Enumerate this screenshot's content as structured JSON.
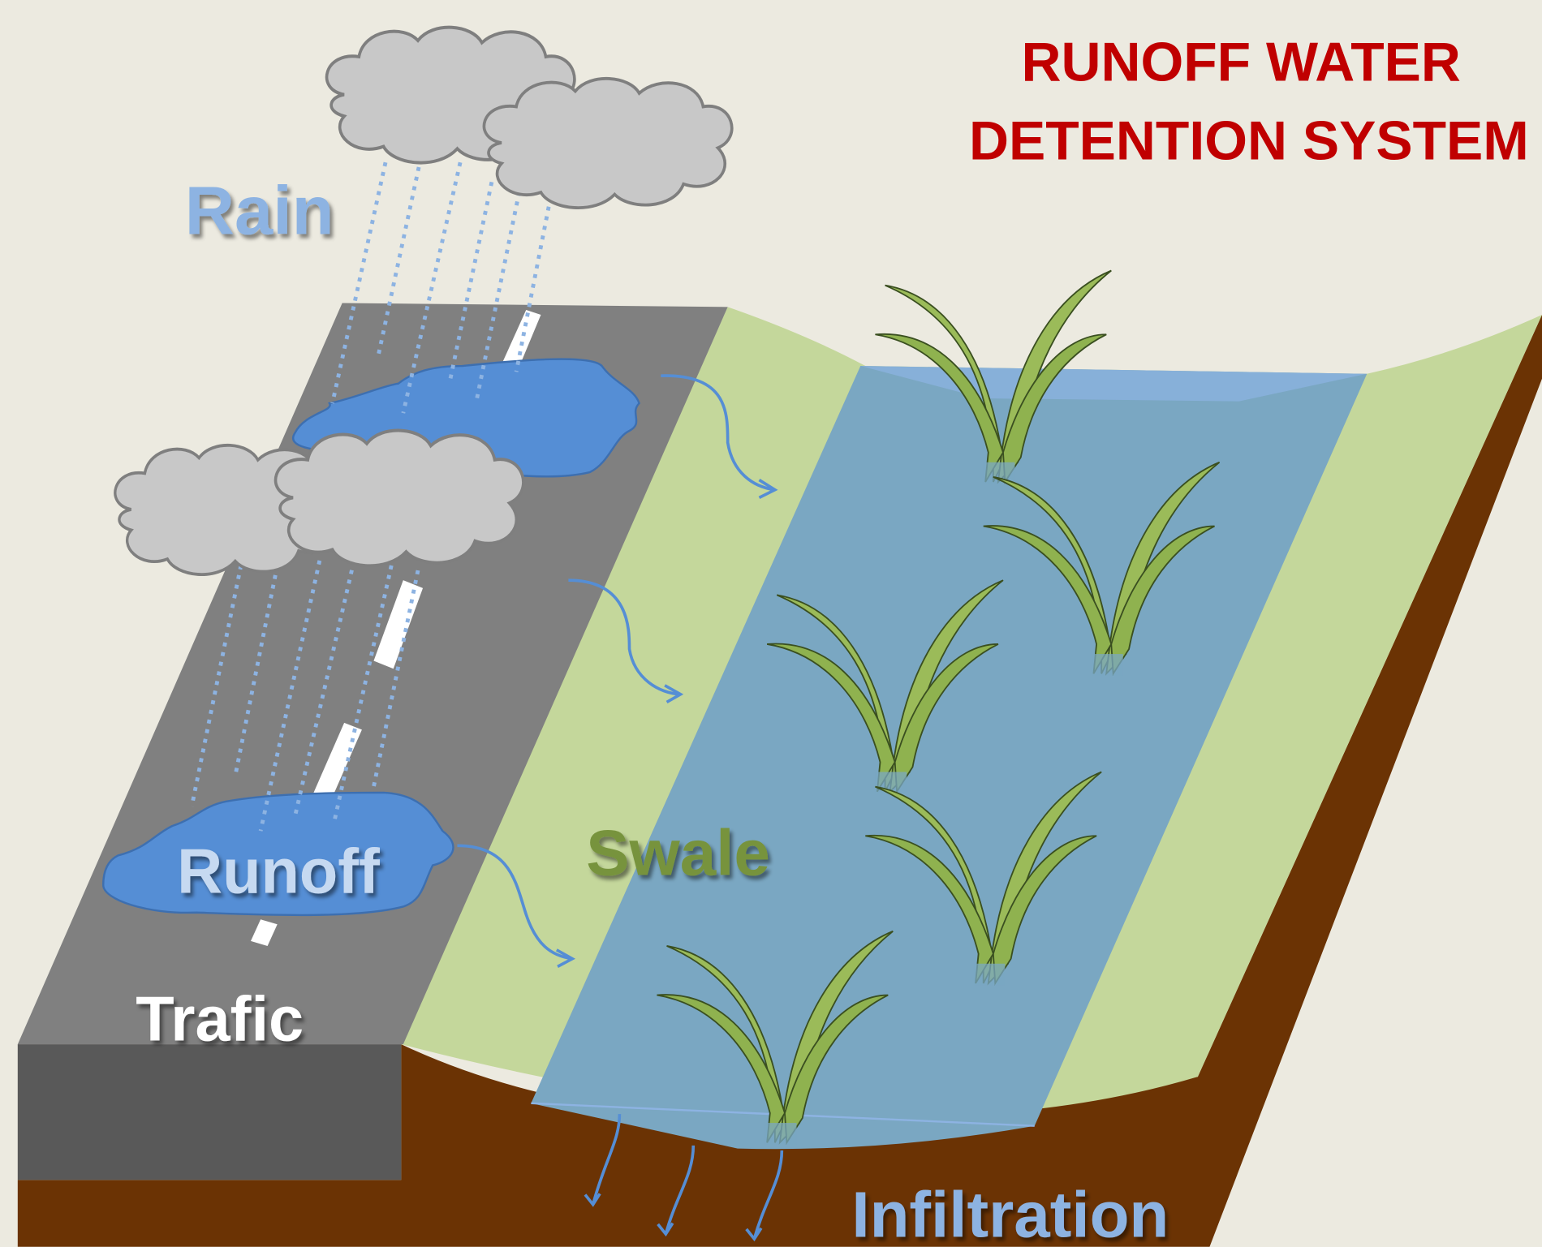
{
  "title": [
    "RUNOFF WATER",
    "DETENTION SYSTEM"
  ],
  "labels": {
    "rain": "Rain",
    "runoff": "Runoff",
    "trafic": "Trafic",
    "swale": "Swale",
    "infiltration": "Infiltration"
  }
}
